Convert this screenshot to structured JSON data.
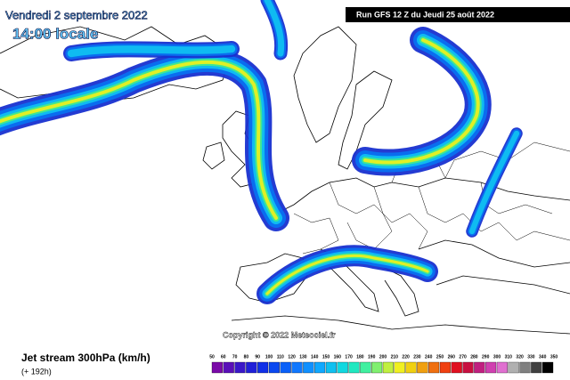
{
  "header": {
    "date": "Vendredi 2 septembre 2022",
    "time": "14:00 locale",
    "run": "Run GFS 12 Z du Jeudi 25 août 2022"
  },
  "copyright": "Copyright © 2022 Meteociel.fr",
  "footer": {
    "title": "Jet stream 300hPa (km/h)",
    "lead": "(+ 192h)"
  },
  "colorbar": {
    "labels": [
      50,
      60,
      70,
      80,
      90,
      100,
      110,
      120,
      130,
      140,
      150,
      160,
      170,
      180,
      190,
      200,
      210,
      220,
      230,
      240,
      250,
      260,
      270,
      280,
      290,
      300,
      310,
      320,
      330,
      340,
      350
    ],
    "colors": [
      "#7a0aa8",
      "#5a10b8",
      "#3a18c8",
      "#2020d8",
      "#1030e8",
      "#0a48f0",
      "#0a60f8",
      "#1078ff",
      "#1090ff",
      "#10a8ff",
      "#10c0f0",
      "#10d8e0",
      "#20e8c0",
      "#40f0a0",
      "#80f070",
      "#c0f040",
      "#f0f020",
      "#f0d010",
      "#f0a010",
      "#f07010",
      "#f04010",
      "#e01020",
      "#c81040",
      "#c02080",
      "#d040b0",
      "#e070d0",
      "#b0b0b0",
      "#808080",
      "#404040",
      "#000000"
    ]
  }
}
